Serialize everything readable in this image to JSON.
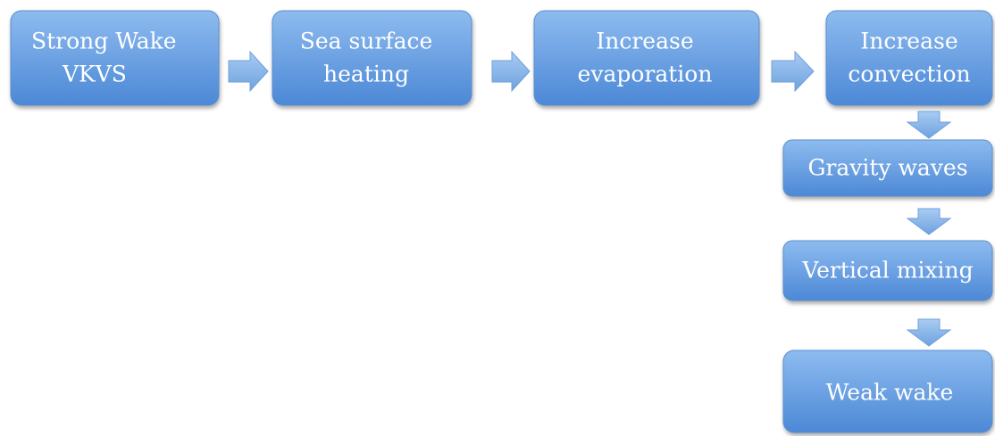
{
  "nodes": [
    {
      "lines": [
        "Strong Wake",
        "VKVS"
      ]
    },
    {
      "lines": [
        "Sea surface",
        "heating"
      ]
    },
    {
      "lines": [
        "Increase",
        "evaporation"
      ]
    },
    {
      "lines": [
        "Increase",
        "convection"
      ]
    },
    {
      "lines": [
        "Gravity waves"
      ]
    },
    {
      "lines": [
        "Vertical mixing"
      ]
    },
    {
      "lines": [
        "Weak wake"
      ]
    }
  ]
}
